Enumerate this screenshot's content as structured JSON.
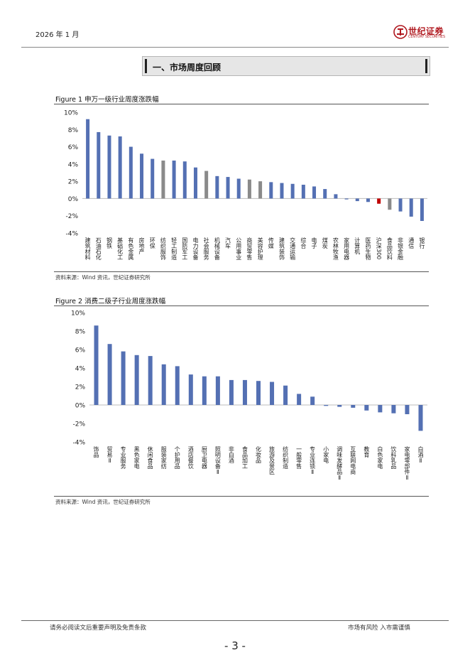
{
  "header": {
    "date": "2026 年 1 月",
    "logo_cn": "世纪证券",
    "logo_en": "CENTURY SECURITIES",
    "logo_color": "#b0181f"
  },
  "section": {
    "title": "一、市场周度回顾"
  },
  "colors": {
    "primary": "#5470b3",
    "grey": "#8a8a8a",
    "red": "#c00000"
  },
  "figures": {
    "fig1": {
      "label": "Figure 1",
      "title": "申万一级行业周度涨跌幅",
      "source": "资料来源：Wind 资讯，世纪证券研究所"
    },
    "fig2": {
      "label": "Figure 2",
      "title": "消费二级子行业周度涨跌幅",
      "source": "资料来源：Wind 资讯，世纪证券研究所"
    }
  },
  "chart_data": [
    {
      "type": "bar",
      "title": "申万一级行业周度涨跌幅",
      "ylim": [
        -4,
        10
      ],
      "yticks": [
        -4,
        -2,
        0,
        2,
        4,
        6,
        8,
        10
      ],
      "ytick_labels": [
        "-4%",
        "-2%",
        "0%",
        "2%",
        "4%",
        "6%",
        "8%",
        "10%"
      ],
      "categories": [
        "建筑材料",
        "石油石化",
        "钢铁",
        "基础化工",
        "有色金属",
        "房地产",
        "环保",
        "纺织服饰",
        "轻工制造",
        "国防军工",
        "电力设备",
        "社会服务",
        "机械设备",
        "汽车",
        "公用事业",
        "商贸零售",
        "美容护理",
        "传媒",
        "建筑装饰",
        "交通运输",
        "综合",
        "电子",
        "煤炭",
        "农林牧渔",
        "家用电器",
        "计算机",
        "医药生物",
        "沪深300",
        "食品饮料",
        "非银金融",
        "通信",
        "银行"
      ],
      "values": [
        9.2,
        7.7,
        7.3,
        7.2,
        6.0,
        5.2,
        4.6,
        4.4,
        4.4,
        4.3,
        3.6,
        3.2,
        2.6,
        2.5,
        2.3,
        2.2,
        2.0,
        1.9,
        1.8,
        1.7,
        1.6,
        1.4,
        1.1,
        0.5,
        -0.1,
        -0.3,
        -0.4,
        -0.6,
        -1.3,
        -1.5,
        -2.1,
        -2.6
      ],
      "colors": [
        "primary",
        "primary",
        "primary",
        "primary",
        "primary",
        "primary",
        "primary",
        "grey",
        "primary",
        "primary",
        "primary",
        "grey",
        "primary",
        "primary",
        "primary",
        "grey",
        "grey",
        "primary",
        "primary",
        "primary",
        "primary",
        "primary",
        "primary",
        "primary",
        "primary",
        "primary",
        "primary",
        "red",
        "grey",
        "primary",
        "primary",
        "primary"
      ]
    },
    {
      "type": "bar",
      "title": "消费二级子行业周度涨跌幅",
      "ylim": [
        -4,
        10
      ],
      "yticks": [
        -4,
        -2,
        0,
        2,
        4,
        6,
        8,
        10
      ],
      "ytick_labels": [
        "-4%",
        "-2%",
        "0%",
        "2%",
        "4%",
        "6%",
        "8%",
        "10%"
      ],
      "categories": [
        "饰品",
        "贸易Ⅱ",
        "专业服务",
        "黑色家电",
        "休闲食品",
        "服装家纺",
        "个护用品",
        "酒店餐饮",
        "厨卫电器",
        "照明设备Ⅱ",
        "非白酒",
        "食品加工",
        "化妆品",
        "旅游及景区",
        "纺织制造",
        "一般零售",
        "专业连锁Ⅱ",
        "小家电",
        "调味发酵品Ⅱ",
        "互联网电商",
        "教育",
        "白色家电",
        "饮料乳品",
        "家电零部件Ⅱ",
        "白酒Ⅱ"
      ],
      "values": [
        8.6,
        6.6,
        5.8,
        5.4,
        5.3,
        4.4,
        4.2,
        3.3,
        3.1,
        3.1,
        2.7,
        2.7,
        2.6,
        2.5,
        2.1,
        1.2,
        0.9,
        -0.1,
        -0.2,
        -0.3,
        -0.6,
        -0.8,
        -0.9,
        -1.0,
        -2.8
      ],
      "colors": [
        "primary",
        "primary",
        "primary",
        "primary",
        "primary",
        "primary",
        "primary",
        "primary",
        "primary",
        "primary",
        "primary",
        "primary",
        "primary",
        "primary",
        "primary",
        "primary",
        "primary",
        "primary",
        "primary",
        "primary",
        "primary",
        "primary",
        "primary",
        "primary",
        "primary"
      ]
    }
  ],
  "footer": {
    "disclaimer": "请务必阅读文后重要声明及免责条款",
    "risk": "市场有风险 入市需谨慎",
    "page": "- 3 -"
  }
}
